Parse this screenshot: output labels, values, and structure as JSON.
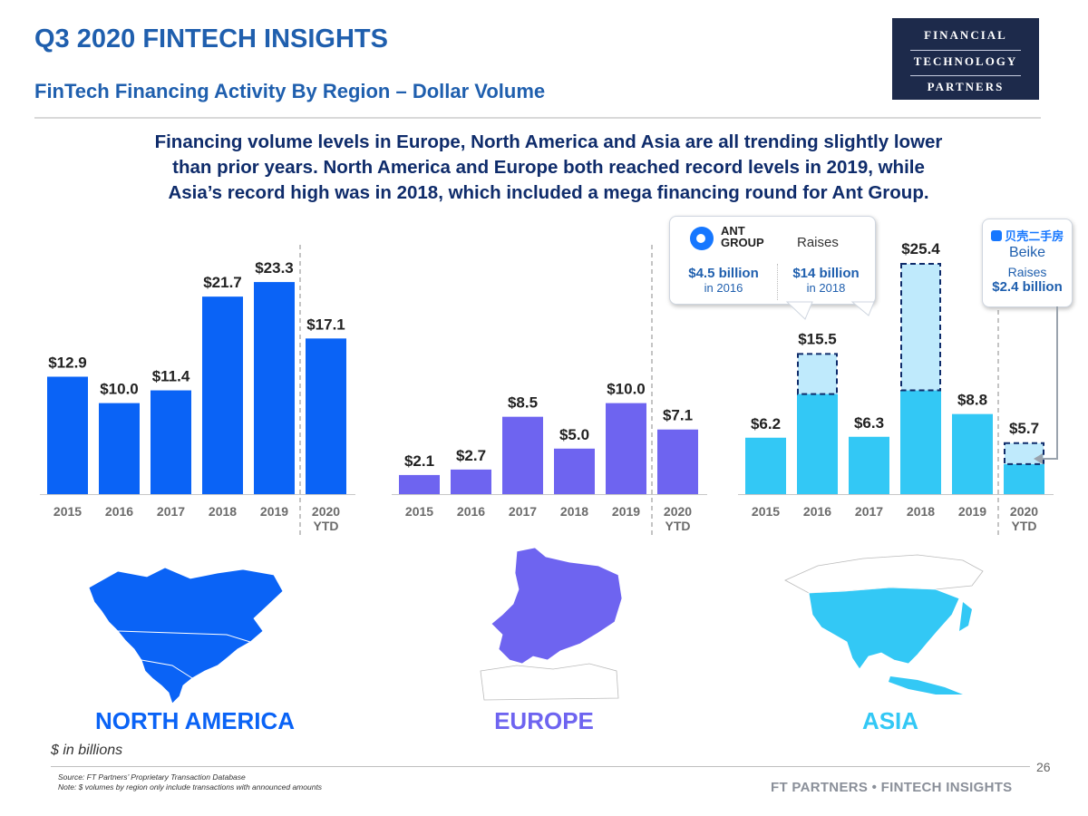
{
  "header": {
    "title": "Q3 2020 FINTECH INSIGHTS",
    "subtitle": "FinTech Financing Activity By Region – Dollar Volume"
  },
  "logo": {
    "line1": "FINANCIAL",
    "line2": "TECHNOLOGY",
    "line3": "PARTNERS"
  },
  "intro": {
    "line1": "Financing volume levels in Europe, North America and Asia are all trending slightly lower",
    "line2": "than prior years. North America and Europe both reached record levels in 2019, while",
    "line3": "Asia’s record high was in 2018, which included a mega financing round for Ant Group."
  },
  "colors": {
    "north_america": "#0a63f6",
    "europe": "#6e64f0",
    "asia": "#33c8f5",
    "title_blue": "#1f5fae",
    "navy": "#0f2c6b"
  },
  "chart_data": [
    {
      "type": "bar",
      "region": "North America",
      "categories": [
        "2015",
        "2016",
        "2017",
        "2018",
        "2019",
        "2020"
      ],
      "category_sublabels": [
        "",
        "",
        "",
        "",
        "",
        "YTD"
      ],
      "values": [
        12.9,
        10.0,
        11.4,
        21.7,
        23.3,
        17.1
      ],
      "labels": [
        "$12.9",
        "$10.0",
        "$11.4",
        "$21.7",
        "$23.3",
        "$17.1"
      ],
      "ylim": [
        0,
        25.4
      ],
      "ylabel": "$ in billions"
    },
    {
      "type": "bar",
      "region": "Europe",
      "categories": [
        "2015",
        "2016",
        "2017",
        "2018",
        "2019",
        "2020"
      ],
      "category_sublabels": [
        "",
        "",
        "",
        "",
        "",
        "YTD"
      ],
      "values": [
        2.1,
        2.7,
        8.5,
        5.0,
        10.0,
        7.1
      ],
      "labels": [
        "$2.1",
        "$2.7",
        "$8.5",
        "$5.0",
        "$10.0",
        "$7.1"
      ],
      "ylim": [
        0,
        25.4
      ],
      "ylabel": "$ in billions"
    },
    {
      "type": "bar",
      "region": "Asia",
      "categories": [
        "2015",
        "2016",
        "2017",
        "2018",
        "2019",
        "2020"
      ],
      "category_sublabels": [
        "",
        "",
        "",
        "",
        "",
        "YTD"
      ],
      "values": [
        6.2,
        15.5,
        6.3,
        25.4,
        8.8,
        5.7
      ],
      "labels": [
        "$6.2",
        "$15.5",
        "$6.3",
        "$25.4",
        "$8.8",
        "$5.7"
      ],
      "highlighted_portion": [
        0,
        4.5,
        0,
        14.0,
        0,
        2.4
      ],
      "ylim": [
        0,
        25.4
      ],
      "ylabel": "$ in billions"
    }
  ],
  "callouts": {
    "ant": {
      "logo_line1": "ANT",
      "logo_line2": "GROUP",
      "raises": "Raises",
      "amount1": "$4.5 billion",
      "date1": "in 2016",
      "amount2": "$14 billion",
      "date2": "in 2018"
    },
    "beike": {
      "brand_cn": "贝壳二手房",
      "name": "Beike",
      "raises": "Raises",
      "amount": "$2.4 billion"
    }
  },
  "regions": {
    "na": "NORTH AMERICA",
    "eu": "EUROPE",
    "asia": "ASIA"
  },
  "footer": {
    "units": "$ in billions",
    "source": "Source: FT Partners’ Proprietary Transaction Database",
    "note": "Note: $ volumes by region only include transactions with announced amounts",
    "brand": "FT PARTNERS • FINTECH INSIGHTS",
    "page": "26"
  }
}
